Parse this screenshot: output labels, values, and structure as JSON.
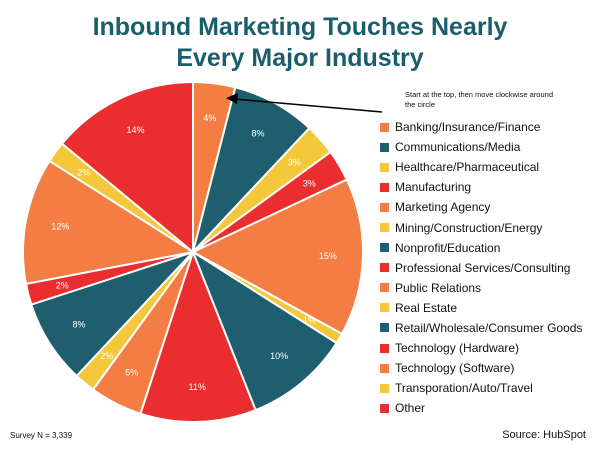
{
  "title_lines": [
    "Inbound Marketing Touches Nearly",
    "Every Major Industry"
  ],
  "annotation": "Start at the top, then move clockwise around the circle",
  "footer": {
    "survey": "Survey N = 3,339",
    "source": "Source: HubSpot"
  },
  "colors": {
    "orange": "#f47d43",
    "teal": "#1e5e6e",
    "yellow": "#f5c83b",
    "red": "#ea2e2f",
    "title": "#1a5e6e"
  },
  "legend": [
    {
      "label": "Banking/Insurance/Finance",
      "color": "#f47d43"
    },
    {
      "label": "Communications/Media",
      "color": "#1e5e6e"
    },
    {
      "label": "Healthcare/Pharmaceutical",
      "color": "#f5c83b"
    },
    {
      "label": "Manufacturing",
      "color": "#ea2e2f"
    },
    {
      "label": "Marketing Agency",
      "color": "#f47d43"
    },
    {
      "label": "Mining/Construction/Energy",
      "color": "#f5c83b"
    },
    {
      "label": "Nonprofit/Education",
      "color": "#1e5e6e"
    },
    {
      "label": "Professional Services/Consulting",
      "color": "#ea2e2f"
    },
    {
      "label": "Public Relations",
      "color": "#f47d43"
    },
    {
      "label": "Real Estate",
      "color": "#f5c83b"
    },
    {
      "label": "Retail/Wholesale/Consumer Goods",
      "color": "#1e5e6e"
    },
    {
      "label": "Technology (Hardware)",
      "color": "#ea2e2f"
    },
    {
      "label": "Technology (Software)",
      "color": "#f47d43"
    },
    {
      "label": "Transporation/Auto/Travel",
      "color": "#f5c83b"
    },
    {
      "label": "Other",
      "color": "#ea2e2f"
    }
  ],
  "chart_data": {
    "type": "pie",
    "slices": [
      {
        "label": "4%",
        "value": 4,
        "color": "#f47d43"
      },
      {
        "label": "8%",
        "value": 8,
        "color": "#1e5e6e"
      },
      {
        "label": "3%",
        "value": 3,
        "color": "#f5c83b"
      },
      {
        "label": "3%",
        "value": 3,
        "color": "#ea2e2f"
      },
      {
        "label": "15%",
        "value": 15,
        "color": "#f47d43"
      },
      {
        "label": "1%",
        "value": 1,
        "color": "#f5c83b"
      },
      {
        "label": "10%",
        "value": 10,
        "color": "#1e5e6e"
      },
      {
        "label": "11%",
        "value": 11,
        "color": "#ea2e2f"
      },
      {
        "label": "5%",
        "value": 5,
        "color": "#f47d43"
      },
      {
        "label": "2%",
        "value": 2,
        "color": "#f5c83b"
      },
      {
        "label": "8%",
        "value": 8,
        "color": "#1e5e6e"
      },
      {
        "label": "2%",
        "value": 2,
        "color": "#ea2e2f"
      },
      {
        "label": "12%",
        "value": 12,
        "color": "#f47d43"
      },
      {
        "label": "2%",
        "value": 2,
        "color": "#f5c83b"
      },
      {
        "label": "14%",
        "value": 14,
        "color": "#ea2e2f"
      }
    ]
  }
}
